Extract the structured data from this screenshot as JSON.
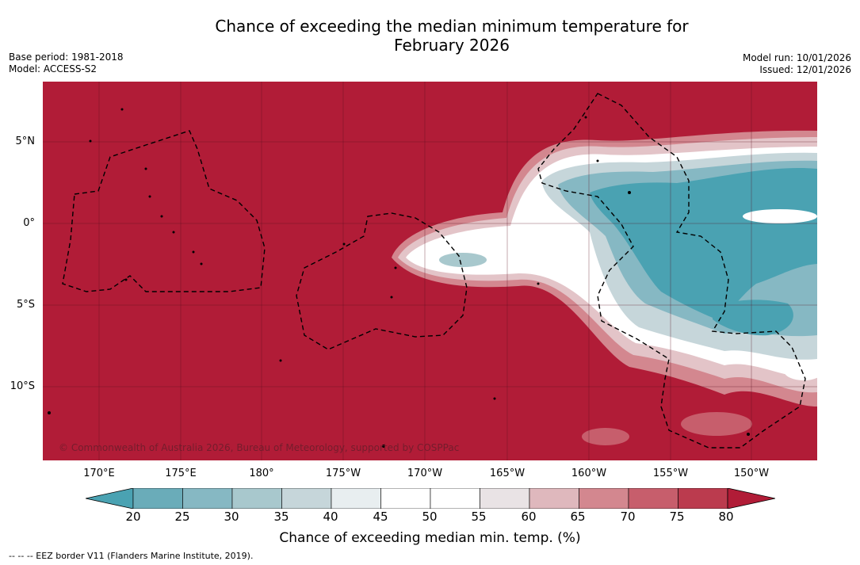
{
  "title": {
    "line1": "Chance of exceeding the median minimum temperature for",
    "line2": "February 2026"
  },
  "meta": {
    "base_period": "Base period: 1981-2018",
    "model": "Model: ACCESS-S2",
    "model_run": "Model run: 10/01/2026",
    "issued": "Issued: 12/01/2026"
  },
  "map": {
    "background_color": "#b11c37",
    "copyright": "© Commonwealth of Australia 2026, Bureau of Meteorology, supported by COSPPac",
    "lat_ticks": [
      "5°N",
      "0°",
      "5°S",
      "10°S"
    ],
    "lon_ticks": [
      "170°E",
      "175°E",
      "180°",
      "175°W",
      "170°W",
      "165°W",
      "160°W",
      "155°W",
      "150°W"
    ]
  },
  "colorbar": {
    "ticks": [
      "20",
      "25",
      "30",
      "35",
      "40",
      "45",
      "50",
      "55",
      "60",
      "65",
      "70",
      "75",
      "80"
    ],
    "colors": [
      "#4aa2b2",
      "#6aacb9",
      "#86b8c3",
      "#a8c8cd",
      "#c6d6da",
      "#e8eef0",
      "#ffffff",
      "#ffffff",
      "#e9e3e5",
      "#dfb8bd",
      "#d3878f",
      "#c75e6c",
      "#bb3b4e",
      "#b11c37"
    ],
    "label": "Chance of exceeding median min. temp. (%)"
  },
  "footnote": "--  --  -- EEZ border V11 (Flanders Marine Institute, 2019)."
}
